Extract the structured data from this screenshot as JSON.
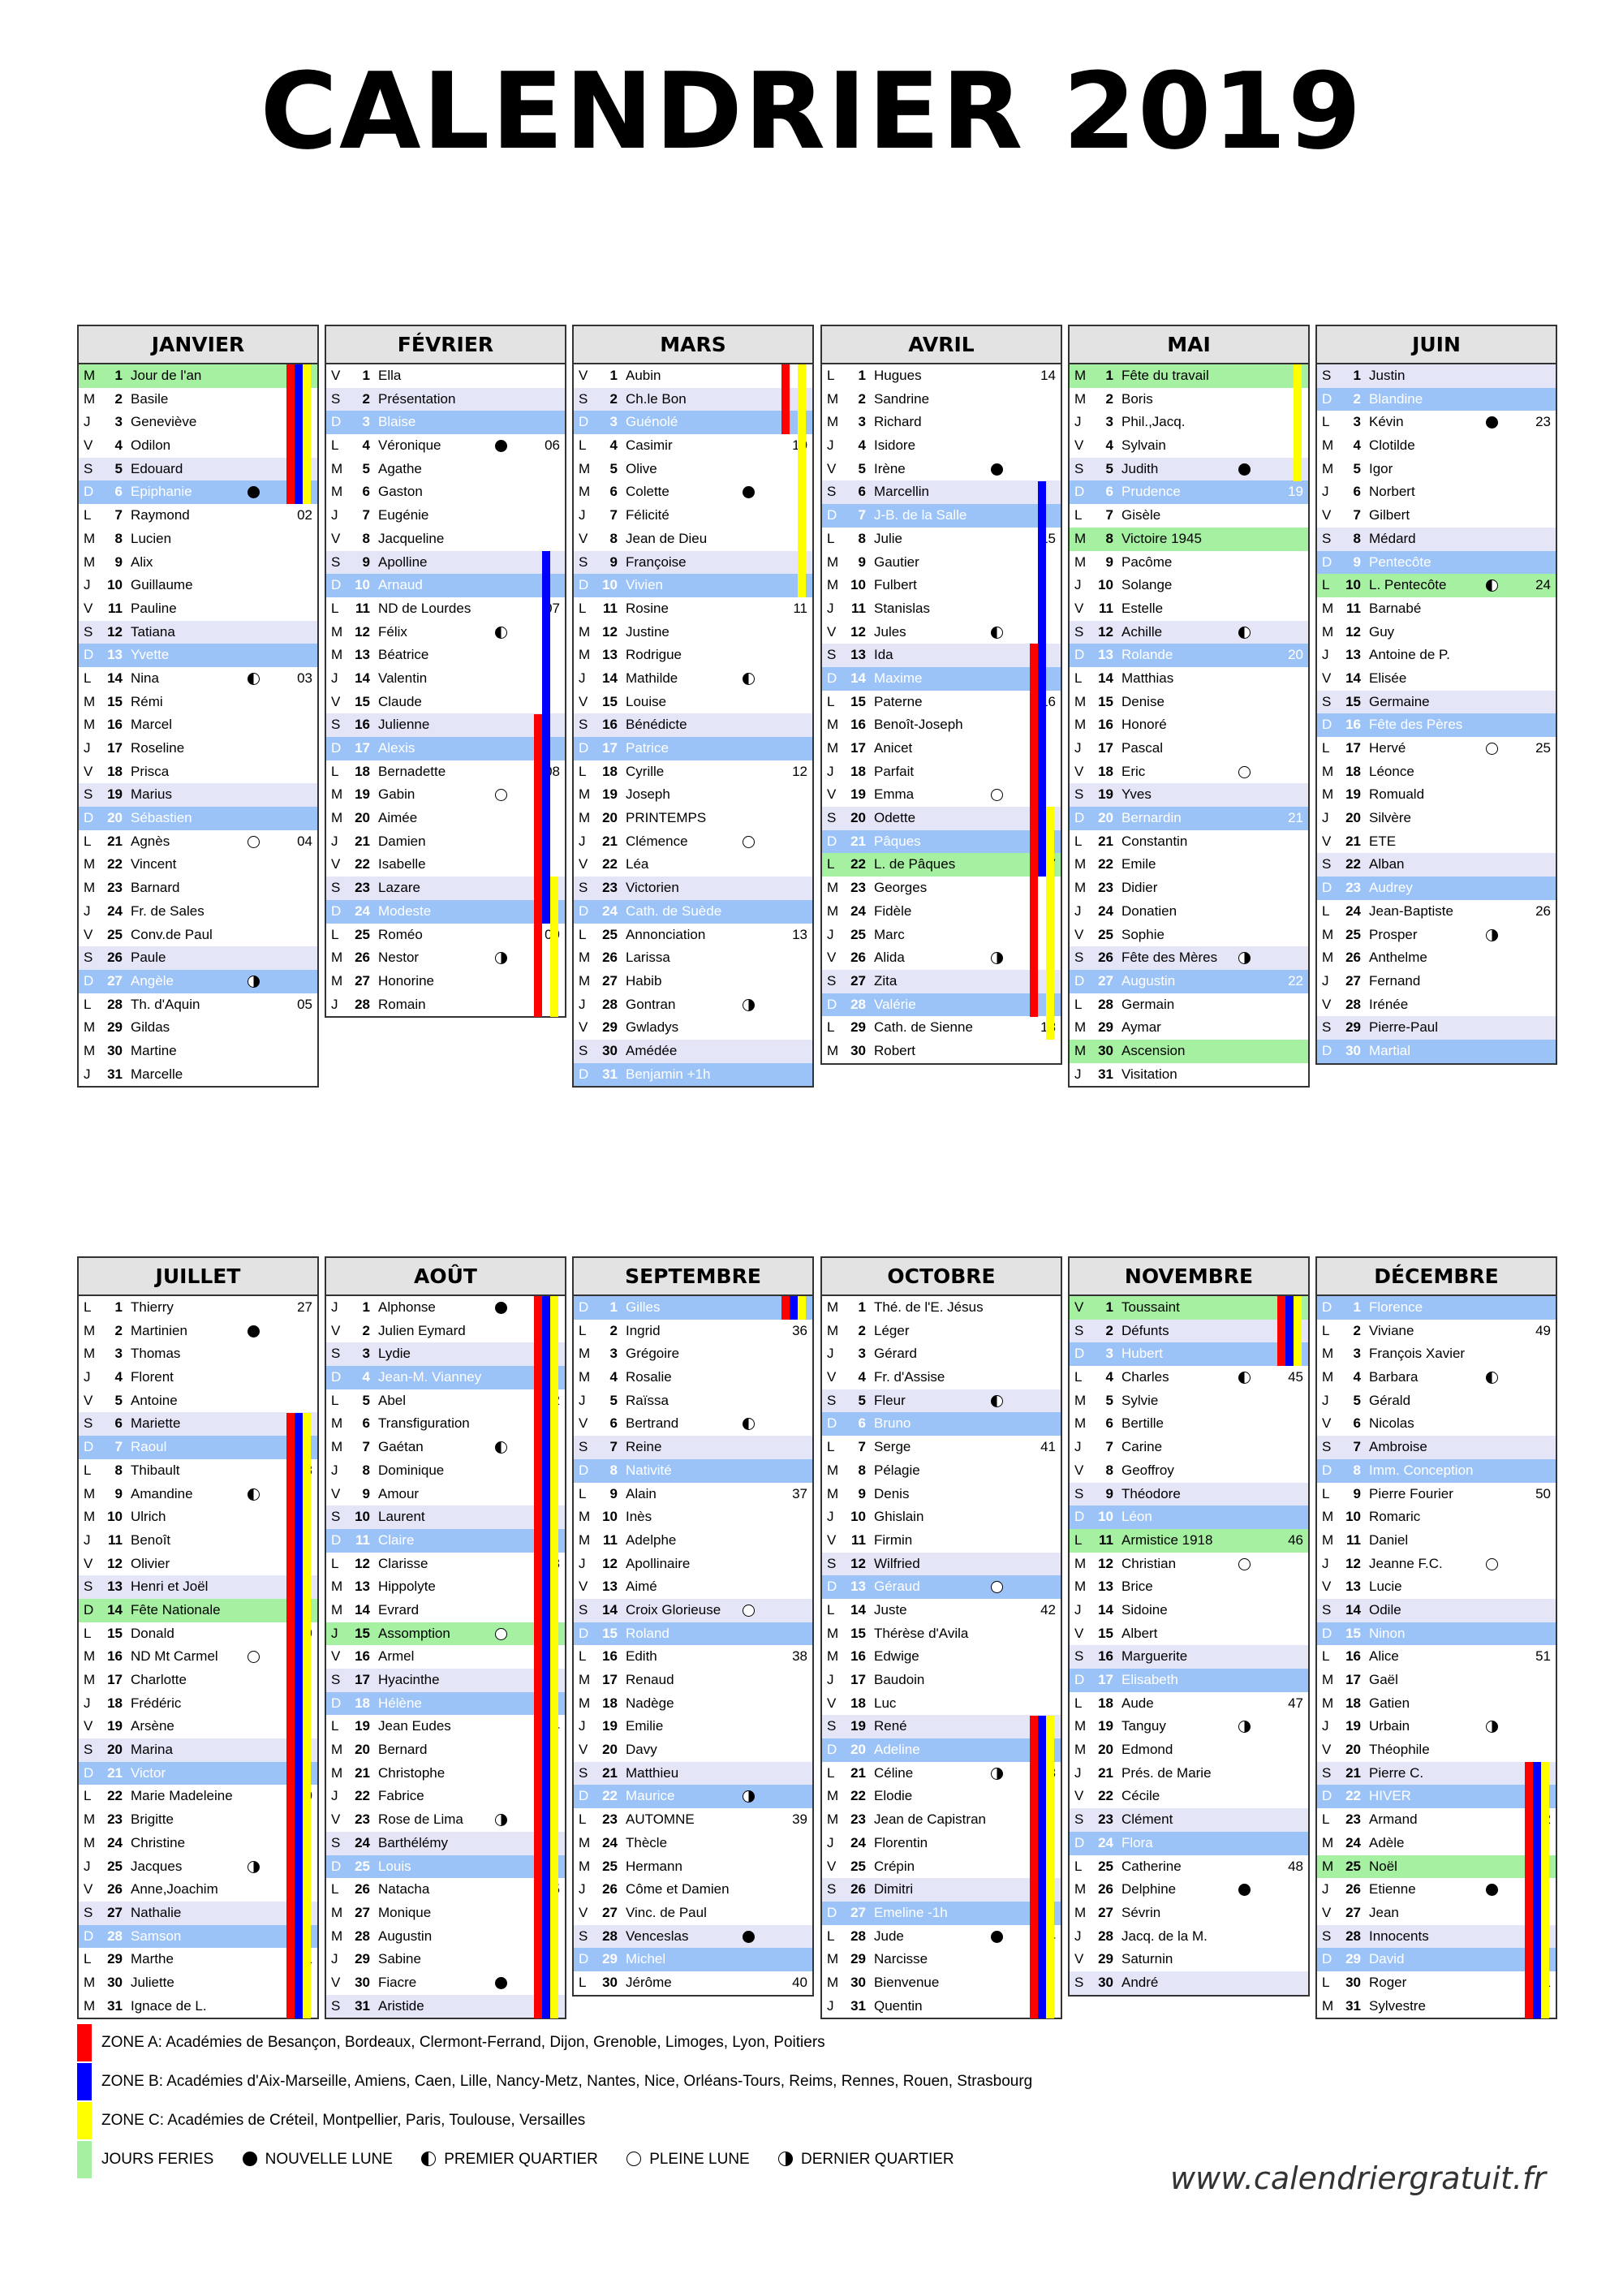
{
  "title": "CALENDRIER 2019",
  "website": "www.calendriergratuit.fr",
  "colors": {
    "zone_a": "#ff0000",
    "zone_b": "#0000ff",
    "zone_c": "#ffff00",
    "holiday": "#a6f0a2",
    "sunday": "#9cc3f7",
    "saturday": "#e4e6f8"
  },
  "legend": {
    "zone_a": "ZONE A: Académies de Besançon, Bordeaux, Clermont-Ferrand, Dijon, Grenoble, Limoges, Lyon, Poitiers",
    "zone_b": "ZONE B: Académies d'Aix-Marseille, Amiens, Caen, Lille, Nancy-Metz, Nantes, Nice, Orléans-Tours, Reims, Rennes, Rouen, Strasbourg",
    "zone_c": "ZONE C: Académies de Créteil, Montpellier, Paris, Toulouse, Versailles",
    "holidays": "JOURS FERIES",
    "new_moon": "NOUVELLE LUNE",
    "first_quarter": "PREMIER QUARTIER",
    "full_moon": "PLEINE LUNE",
    "last_quarter": "DERNIER QUARTIER"
  },
  "months": [
    {
      "name": "JANVIER",
      "first": "M",
      "hol": [
        1
      ],
      "days": [
        "Jour de l'an",
        "Basile",
        "Geneviève",
        "Odilon",
        "Edouard",
        "Epiphanie",
        "Raymond",
        "Lucien",
        "Alix",
        "Guillaume",
        "Pauline",
        "Tatiana",
        "Yvette",
        "Nina",
        "Rémi",
        "Marcel",
        "Roseline",
        "Prisca",
        "Marius",
        "Sébastien",
        "Agnès",
        "Vincent",
        "Barnard",
        "Fr. de Sales",
        "Conv.de Paul",
        "Paule",
        "Angèle",
        "Th. d'Aquin",
        "Gildas",
        "Martine",
        "Marcelle"
      ],
      "moons": [
        [
          6,
          "nl"
        ],
        [
          14,
          "pq"
        ],
        [
          21,
          "pl"
        ],
        [
          27,
          "dq"
        ]
      ],
      "weeks": [
        [
          7,
          "02"
        ],
        [
          14,
          "03"
        ],
        [
          21,
          "04"
        ],
        [
          28,
          "05"
        ]
      ],
      "vac": [
        [
          1,
          6,
          1,
          6,
          1,
          6
        ]
      ]
    },
    {
      "name": "FÉVRIER",
      "first": "V",
      "hol": [],
      "days": [
        "Ella",
        "Présentation",
        "Blaise",
        "Véronique",
        "Agathe",
        "Gaston",
        "Eugénie",
        "Jacqueline",
        "Apolline",
        "Arnaud",
        "ND de Lourdes",
        "Félix",
        "Béatrice",
        "Valentin",
        "Claude",
        "Julienne",
        "Alexis",
        "Bernadette",
        "Gabin",
        "Aimée",
        "Damien",
        "Isabelle",
        "Lazare",
        "Modeste",
        "Roméo",
        "Nestor",
        "Honorine",
        "Romain"
      ],
      "moons": [
        [
          4,
          "nl"
        ],
        [
          12,
          "pq"
        ],
        [
          19,
          "pl"
        ],
        [
          26,
          "dq"
        ]
      ],
      "weeks": [
        [
          4,
          "06"
        ],
        [
          11,
          "07"
        ],
        [
          18,
          "08"
        ],
        [
          25,
          "09"
        ]
      ],
      "vac": [
        [
          16,
          28,
          9,
          24,
          23,
          28
        ]
      ]
    },
    {
      "name": "MARS",
      "first": "V",
      "hol": [],
      "days": [
        "Aubin",
        "Ch.le Bon",
        "Guénolé",
        "Casimir",
        "Olive",
        "Colette",
        "Félicité",
        "Jean de Dieu",
        "Françoise",
        "Vivien",
        "Rosine",
        "Justine",
        "Rodrigue",
        "Mathilde",
        "Louise",
        "Bénédicte",
        "Patrice",
        "Cyrille",
        "Joseph",
        "PRINTEMPS",
        "Clémence",
        "Léa",
        "Victorien",
        "Cath. de Suède",
        "Annonciation",
        "Larissa",
        "Habib",
        "Gontran",
        "Gwladys",
        "Amédée",
        "Benjamin +1h"
      ],
      "moons": [
        [
          6,
          "nl"
        ],
        [
          14,
          "pq"
        ],
        [
          21,
          "pl"
        ],
        [
          28,
          "dq"
        ]
      ],
      "weeks": [
        [
          4,
          "10"
        ],
        [
          11,
          "11"
        ],
        [
          18,
          "12"
        ],
        [
          25,
          "13"
        ]
      ],
      "vac": [
        [
          1,
          3,
          0,
          0,
          1,
          10
        ]
      ]
    },
    {
      "name": "AVRIL",
      "first": "L",
      "hol": [
        22
      ],
      "days": [
        "Hugues",
        "Sandrine",
        "Richard",
        "Isidore",
        "Irène",
        "Marcellin",
        "J-B. de la Salle",
        "Julie",
        "Gautier",
        "Fulbert",
        "Stanislas",
        "Jules",
        "Ida",
        "Maxime",
        "Paterne",
        "Benoît-Joseph",
        "Anicet",
        "Parfait",
        "Emma",
        "Odette",
        "Pâques",
        "L. de Pâques",
        "Georges",
        "Fidèle",
        "Marc",
        "Alida",
        "Zita",
        "Valérie",
        "Cath. de Sienne",
        "Robert"
      ],
      "moons": [
        [
          5,
          "nl"
        ],
        [
          12,
          "pq"
        ],
        [
          19,
          "pl"
        ],
        [
          26,
          "dq"
        ]
      ],
      "weeks": [
        [
          1,
          "14"
        ],
        [
          8,
          "15"
        ],
        [
          15,
          "16"
        ],
        [
          22,
          "17"
        ],
        [
          29,
          "18"
        ]
      ],
      "vac": [
        [
          13,
          28,
          6,
          22,
          20,
          29
        ]
      ]
    },
    {
      "name": "MAI",
      "first": "M",
      "hol": [
        1,
        8,
        30
      ],
      "days": [
        "Fête du travail",
        "Boris",
        "Phil.,Jacq.",
        "Sylvain",
        "Judith",
        "Prudence",
        "Gisèle",
        "Victoire 1945",
        "Pacôme",
        "Solange",
        "Estelle",
        "Achille",
        "Rolande",
        "Matthias",
        "Denise",
        "Honoré",
        "Pascal",
        "Eric",
        "Yves",
        "Bernardin",
        "Constantin",
        "Emile",
        "Didier",
        "Donatien",
        "Sophie",
        "Fête des Mères",
        "Augustin",
        "Germain",
        "Aymar",
        "Ascension",
        "Visitation"
      ],
      "moons": [
        [
          5,
          "nl"
        ],
        [
          12,
          "pq"
        ],
        [
          18,
          "pl"
        ],
        [
          26,
          "dq"
        ]
      ],
      "weeks": [
        [
          6,
          "19"
        ],
        [
          13,
          "20"
        ],
        [
          20,
          "21"
        ],
        [
          27,
          "22"
        ]
      ],
      "vac": [
        [
          0,
          0,
          0,
          0,
          1,
          5
        ]
      ]
    },
    {
      "name": "JUIN",
      "first": "S",
      "hol": [
        10
      ],
      "days": [
        "Justin",
        "Blandine",
        "Kévin",
        "Clotilde",
        "Igor",
        "Norbert",
        "Gilbert",
        "Médard",
        "Pentecôte",
        "L. Pentecôte",
        "Barnabé",
        "Guy",
        "Antoine de P.",
        "Elisée",
        "Germaine",
        "Fête des Pères",
        "Hervé",
        "Léonce",
        "Romuald",
        "Silvère",
        "ETE",
        "Alban",
        "Audrey",
        "Jean-Baptiste",
        "Prosper",
        "Anthelme",
        "Fernand",
        "Irénée",
        "Pierre-Paul",
        "Martial"
      ],
      "moons": [
        [
          3,
          "nl"
        ],
        [
          10,
          "pq"
        ],
        [
          17,
          "pl"
        ],
        [
          25,
          "dq"
        ]
      ],
      "weeks": [
        [
          3,
          "23"
        ],
        [
          10,
          "24"
        ],
        [
          17,
          "25"
        ],
        [
          24,
          "26"
        ]
      ],
      "vac": []
    },
    {
      "name": "JUILLET",
      "first": "L",
      "hol": [
        14
      ],
      "days": [
        "Thierry",
        "Martinien",
        "Thomas",
        "Florent",
        "Antoine",
        "Mariette",
        "Raoul",
        "Thibault",
        "Amandine",
        "Ulrich",
        "Benoît",
        "Olivier",
        "Henri et Joël",
        "Fête Nationale",
        "Donald",
        "ND Mt Carmel",
        "Charlotte",
        "Frédéric",
        "Arsène",
        "Marina",
        "Victor",
        "Marie Madeleine",
        "Brigitte",
        "Christine",
        "Jacques",
        "Anne,Joachim",
        "Nathalie",
        "Samson",
        "Marthe",
        "Juliette",
        "Ignace de L."
      ],
      "moons": [
        [
          2,
          "nl"
        ],
        [
          9,
          "pq"
        ],
        [
          16,
          "pl"
        ],
        [
          25,
          "dq"
        ]
      ],
      "weeks": [
        [
          1,
          "27"
        ],
        [
          8,
          "28"
        ],
        [
          15,
          "29"
        ],
        [
          22,
          "30"
        ],
        [
          29,
          "31"
        ]
      ],
      "vac": [
        [
          6,
          31,
          6,
          31,
          6,
          31
        ]
      ]
    },
    {
      "name": "AOÛT",
      "first": "J",
      "hol": [
        15
      ],
      "days": [
        "Alphonse",
        "Julien Eymard",
        "Lydie",
        "Jean-M. Vianney",
        "Abel",
        "Transfiguration",
        "Gaétan",
        "Dominique",
        "Amour",
        "Laurent",
        "Claire",
        "Clarisse",
        "Hippolyte",
        "Evrard",
        "Assomption",
        "Armel",
        "Hyacinthe",
        "Hélène",
        "Jean Eudes",
        "Bernard",
        "Christophe",
        "Fabrice",
        "Rose de Lima",
        "Barthélémy",
        "Louis",
        "Natacha",
        "Monique",
        "Augustin",
        "Sabine",
        "Fiacre",
        "Aristide"
      ],
      "moons": [
        [
          1,
          "nl"
        ],
        [
          7,
          "pq"
        ],
        [
          15,
          "pl"
        ],
        [
          23,
          "dq"
        ],
        [
          30,
          "nl"
        ]
      ],
      "weeks": [
        [
          5,
          "32"
        ],
        [
          12,
          "33"
        ],
        [
          19,
          "34"
        ],
        [
          26,
          "35"
        ]
      ],
      "vac": [
        [
          1,
          31,
          1,
          31,
          1,
          31
        ]
      ]
    },
    {
      "name": "SEPTEMBRE",
      "first": "D",
      "hol": [],
      "days": [
        "Gilles",
        "Ingrid",
        "Grégoire",
        "Rosalie",
        "Raïssa",
        "Bertrand",
        "Reine",
        "Nativité",
        "Alain",
        "Inès",
        "Adelphe",
        "Apollinaire",
        "Aimé",
        "Croix Glorieuse",
        "Roland",
        "Edith",
        "Renaud",
        "Nadège",
        "Emilie",
        "Davy",
        "Matthieu",
        "Maurice",
        "AUTOMNE",
        "Thècle",
        "Hermann",
        "Côme et Damien",
        "Vinc. de Paul",
        "Venceslas",
        "Michel",
        "Jérôme"
      ],
      "moons": [
        [
          6,
          "pq"
        ],
        [
          14,
          "pl"
        ],
        [
          22,
          "dq"
        ],
        [
          28,
          "nl"
        ]
      ],
      "weeks": [
        [
          2,
          "36"
        ],
        [
          9,
          "37"
        ],
        [
          16,
          "38"
        ],
        [
          23,
          "39"
        ],
        [
          30,
          "40"
        ]
      ],
      "vac": [
        [
          1,
          1,
          1,
          1,
          1,
          1
        ]
      ]
    },
    {
      "name": "OCTOBRE",
      "first": "M",
      "hol": [],
      "days": [
        "Thé. de l'E. Jésus",
        "Léger",
        "Gérard",
        "Fr. d'Assise",
        "Fleur",
        "Bruno",
        "Serge",
        "Pélagie",
        "Denis",
        "Ghislain",
        "Firmin",
        "Wilfried",
        "Géraud",
        "Juste",
        "Thérèse d'Avila",
        "Edwige",
        "Baudoin",
        "Luc",
        "René",
        "Adeline",
        "Céline",
        "Elodie",
        "Jean de Capistran",
        "Florentin",
        "Crépin",
        "Dimitri",
        "Emeline -1h",
        "Jude",
        "Narcisse",
        "Bienvenue",
        "Quentin"
      ],
      "moons": [
        [
          5,
          "pq"
        ],
        [
          13,
          "pl"
        ],
        [
          21,
          "dq"
        ],
        [
          28,
          "nl"
        ]
      ],
      "weeks": [
        [
          7,
          "41"
        ],
        [
          14,
          "42"
        ],
        [
          21,
          "43"
        ],
        [
          28,
          "44"
        ]
      ],
      "vac": [
        [
          19,
          31,
          19,
          31,
          19,
          31
        ]
      ]
    },
    {
      "name": "NOVEMBRE",
      "first": "V",
      "hol": [
        1,
        11
      ],
      "days": [
        "Toussaint",
        "Défunts",
        "Hubert",
        "Charles",
        "Sylvie",
        "Bertille",
        "Carine",
        "Geoffroy",
        "Théodore",
        "Léon",
        "Armistice 1918",
        "Christian",
        "Brice",
        "Sidoine",
        "Albert",
        "Marguerite",
        "Elisabeth",
        "Aude",
        "Tanguy",
        "Edmond",
        "Prés. de Marie",
        "Cécile",
        "Clément",
        "Flora",
        "Catherine",
        "Delphine",
        "Sévrin",
        "Jacq. de la M.",
        "Saturnin",
        "André"
      ],
      "moons": [
        [
          4,
          "pq"
        ],
        [
          12,
          "pl"
        ],
        [
          19,
          "dq"
        ],
        [
          26,
          "nl"
        ]
      ],
      "weeks": [
        [
          4,
          "45"
        ],
        [
          11,
          "46"
        ],
        [
          18,
          "47"
        ],
        [
          25,
          "48"
        ]
      ],
      "vac": [
        [
          1,
          3,
          1,
          3,
          1,
          3
        ]
      ]
    },
    {
      "name": "DÉCEMBRE",
      "first": "D",
      "hol": [
        25
      ],
      "days": [
        "Florence",
        "Viviane",
        "François Xavier",
        "Barbara",
        "Gérald",
        "Nicolas",
        "Ambroise",
        "Imm. Conception",
        "Pierre Fourier",
        "Romaric",
        "Daniel",
        "Jeanne F.C.",
        "Lucie",
        "Odile",
        "Ninon",
        "Alice",
        "Gaël",
        "Gatien",
        "Urbain",
        "Théophile",
        "Pierre C.",
        "HIVER",
        "Armand",
        "Adèle",
        "Noël",
        "Etienne",
        "Jean",
        "Innocents",
        "David",
        "Roger",
        "Sylvestre"
      ],
      "moons": [
        [
          4,
          "pq"
        ],
        [
          12,
          "pl"
        ],
        [
          19,
          "dq"
        ],
        [
          26,
          "nl"
        ]
      ],
      "weeks": [
        [
          2,
          "49"
        ],
        [
          9,
          "50"
        ],
        [
          16,
          "51"
        ],
        [
          23,
          "52"
        ],
        [
          30,
          "01"
        ]
      ],
      "vac": [
        [
          21,
          31,
          21,
          31,
          21,
          31
        ]
      ]
    }
  ]
}
